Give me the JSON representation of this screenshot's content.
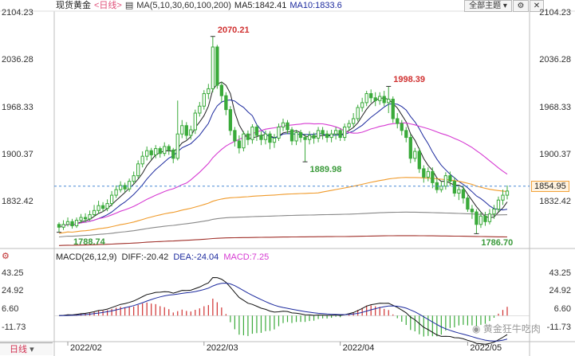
{
  "header": {
    "title": "现货黄金",
    "period": "<日线>",
    "ma_label": "MA(5,10,30,60,100,200)",
    "ma5": "MA5:1842.41",
    "ma10": "MA10:1833.6",
    "theme_button": "全部主题",
    "colors": {
      "title": "#222222",
      "period": "#e0507a",
      "ma_label": "#333333",
      "ma5": "#222222",
      "ma10": "#1c2a9e"
    }
  },
  "macd_header": {
    "label": "MACD(26,12,9)",
    "dif": "DIFF:-20.42",
    "dea": "DEA:-24.04",
    "macd": "MACD:7.25"
  },
  "left_panel": {
    "period_tab": "日线"
  },
  "watermark": "黄金狂牛吃肉",
  "chart_data": {
    "type": "candlestick",
    "price_axis": {
      "ticks": [
        2104.23,
        2036.28,
        1968.33,
        1900.37,
        1832.42
      ],
      "labels": [
        "2104.23",
        "2036.28",
        "1968.33",
        "1900.37",
        "1832.42"
      ]
    },
    "current_price": {
      "value": 1854.95,
      "label": "1854.95",
      "color": "#f2a23a"
    },
    "annotations": [
      {
        "label": "2070.21",
        "value": 2070.21,
        "color": "#d03030"
      },
      {
        "label": "1998.39",
        "value": 1998.39,
        "color": "#d03030"
      },
      {
        "label": "1889.98",
        "value": 1889.98,
        "color": "#3a9a3a"
      },
      {
        "label": "1788.74",
        "value": 1788.74,
        "color": "#3a9a3a"
      },
      {
        "label": "1786.70",
        "value": 1786.7,
        "color": "#3a9a3a"
      }
    ],
    "x_labels": [
      "2022/02",
      "2022/03",
      "2022/04",
      "2022/05"
    ],
    "x_label_index": [
      2,
      33,
      64,
      93
    ],
    "candles": [
      [
        1800,
        1796,
        1803,
        1788.7
      ],
      [
        1796,
        1800,
        1806,
        1792
      ],
      [
        1800,
        1804,
        1810,
        1797
      ],
      [
        1804,
        1798,
        1808,
        1794
      ],
      [
        1798,
        1806,
        1810,
        1795
      ],
      [
        1806,
        1810,
        1815,
        1802
      ],
      [
        1810,
        1808,
        1816,
        1803
      ],
      [
        1808,
        1814,
        1820,
        1805
      ],
      [
        1814,
        1820,
        1828,
        1811
      ],
      [
        1820,
        1827,
        1834,
        1815
      ],
      [
        1827,
        1823,
        1832,
        1818
      ],
      [
        1823,
        1830,
        1836,
        1819
      ],
      [
        1830,
        1842,
        1848,
        1826
      ],
      [
        1842,
        1850,
        1856,
        1838
      ],
      [
        1850,
        1856,
        1862,
        1846
      ],
      [
        1856,
        1851,
        1860,
        1846
      ],
      [
        1851,
        1862,
        1866,
        1847
      ],
      [
        1862,
        1870,
        1876,
        1858
      ],
      [
        1870,
        1887,
        1892,
        1866
      ],
      [
        1887,
        1898,
        1905,
        1882
      ],
      [
        1898,
        1906,
        1912,
        1892
      ],
      [
        1906,
        1900,
        1910,
        1893
      ],
      [
        1900,
        1909,
        1914,
        1895
      ],
      [
        1909,
        1902,
        1912,
        1896
      ],
      [
        1902,
        1912,
        1918,
        1898
      ],
      [
        1912,
        1907,
        1915,
        1900
      ],
      [
        1907,
        1895,
        1910,
        1888
      ],
      [
        1895,
        1930,
        1978,
        1892
      ],
      [
        1930,
        1942,
        1950,
        1924
      ],
      [
        1942,
        1928,
        1947,
        1922
      ],
      [
        1928,
        1936,
        1942,
        1922
      ],
      [
        1936,
        1960,
        1965,
        1930
      ],
      [
        1960,
        1970,
        1976,
        1955
      ],
      [
        1970,
        1988,
        1993,
        1965
      ],
      [
        1988,
        1995,
        2002,
        1980
      ],
      [
        1995,
        2055,
        2070.2,
        1990
      ],
      [
        2055,
        2000,
        2058,
        1995
      ],
      [
        2000,
        1985,
        2005,
        1976
      ],
      [
        1985,
        1965,
        1990,
        1957
      ],
      [
        1965,
        1935,
        1970,
        1928
      ],
      [
        1935,
        1920,
        1940,
        1912
      ],
      [
        1920,
        1910,
        1928,
        1902
      ],
      [
        1910,
        1930,
        1934,
        1905
      ],
      [
        1930,
        1922,
        1935,
        1914
      ],
      [
        1922,
        1940,
        1944,
        1916
      ],
      [
        1940,
        1928,
        1944,
        1920
      ],
      [
        1928,
        1922,
        1934,
        1914
      ],
      [
        1922,
        1930,
        1935,
        1915
      ],
      [
        1930,
        1918,
        1934,
        1908
      ],
      [
        1918,
        1924,
        1930,
        1910
      ],
      [
        1924,
        1940,
        1945,
        1920
      ],
      [
        1940,
        1946,
        1952,
        1934
      ],
      [
        1946,
        1936,
        1950,
        1930
      ],
      [
        1936,
        1920,
        1940,
        1914
      ],
      [
        1920,
        1932,
        1936,
        1914
      ],
      [
        1932,
        1925,
        1936,
        1918
      ],
      [
        1925,
        1922,
        1930,
        1890
      ],
      [
        1922,
        1928,
        1934,
        1915
      ],
      [
        1928,
        1924,
        1932,
        1916
      ],
      [
        1924,
        1935,
        1940,
        1918
      ],
      [
        1935,
        1930,
        1940,
        1922
      ],
      [
        1930,
        1925,
        1935,
        1918
      ],
      [
        1925,
        1930,
        1936,
        1918
      ],
      [
        1930,
        1935,
        1940,
        1922
      ],
      [
        1935,
        1925,
        1938,
        1920
      ],
      [
        1925,
        1940,
        1945,
        1920
      ],
      [
        1940,
        1945,
        1950,
        1935
      ],
      [
        1945,
        1952,
        1960,
        1940
      ],
      [
        1952,
        1968,
        1972,
        1948
      ],
      [
        1968,
        1975,
        1982,
        1962
      ],
      [
        1975,
        1988,
        1992,
        1970
      ],
      [
        1988,
        1982,
        1994,
        1975
      ],
      [
        1982,
        1978,
        1990,
        1970
      ],
      [
        1978,
        1984,
        1990,
        1972
      ],
      [
        1984,
        1975,
        1992,
        1970
      ],
      [
        1975,
        1980,
        1998.4,
        1960
      ],
      [
        1980,
        1952,
        1984,
        1946
      ],
      [
        1952,
        1945,
        1960,
        1938
      ],
      [
        1945,
        1935,
        1950,
        1928
      ],
      [
        1935,
        1925,
        1940,
        1918
      ],
      [
        1925,
        1895,
        1930,
        1888
      ],
      [
        1895,
        1905,
        1910,
        1890
      ],
      [
        1905,
        1880,
        1910,
        1874
      ],
      [
        1880,
        1868,
        1885,
        1860
      ],
      [
        1868,
        1876,
        1882,
        1862
      ],
      [
        1876,
        1860,
        1882,
        1852
      ],
      [
        1860,
        1850,
        1866,
        1845
      ],
      [
        1850,
        1855,
        1862,
        1846
      ],
      [
        1855,
        1870,
        1875,
        1850
      ],
      [
        1870,
        1862,
        1876,
        1855
      ],
      [
        1862,
        1845,
        1868,
        1840
      ],
      [
        1845,
        1850,
        1855,
        1835
      ],
      [
        1850,
        1838,
        1856,
        1830
      ],
      [
        1838,
        1822,
        1842,
        1818
      ],
      [
        1822,
        1818,
        1828,
        1808
      ],
      [
        1818,
        1800,
        1822,
        1786.7
      ],
      [
        1800,
        1812,
        1818,
        1795
      ],
      [
        1812,
        1804,
        1818,
        1798
      ],
      [
        1804,
        1815,
        1822,
        1800
      ],
      [
        1815,
        1822,
        1828,
        1808
      ],
      [
        1822,
        1835,
        1840,
        1818
      ],
      [
        1835,
        1842,
        1850,
        1828
      ],
      [
        1842,
        1848,
        1856,
        1836
      ]
    ],
    "ma_colors": [
      "#222222",
      "#1c2a9e",
      "#d63ad2",
      "#f09a2a",
      "#888888",
      "#a0302a"
    ],
    "macd": {
      "axis_labels": [
        "43.25",
        "24.92",
        "6.60",
        "-11.73"
      ],
      "axis_values": [
        43.25,
        24.92,
        6.6,
        -11.73
      ],
      "dif_color": "#111111",
      "dea_color": "#1c2a9e",
      "pos_color": "#d03030",
      "neg_color": "#3aaa3a"
    }
  }
}
